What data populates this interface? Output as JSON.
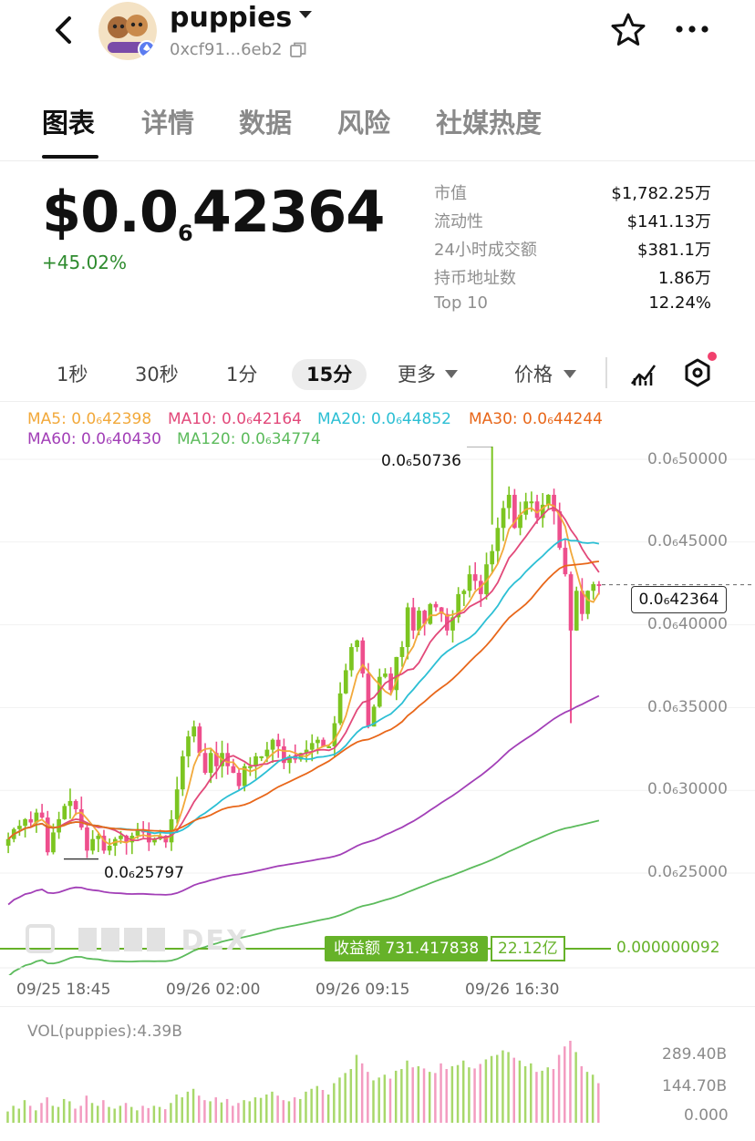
{
  "header": {
    "token_name": "puppies",
    "address": "0xcf91...6eb2"
  },
  "tabs": [
    "图表",
    "详情",
    "数据",
    "风险",
    "社媒热度"
  ],
  "price": {
    "prefix": "$0.0",
    "zeros_sub": "6",
    "digits": "42364",
    "change": "+45.02%"
  },
  "stats": [
    {
      "label": "市值",
      "value": "$1,782.25万"
    },
    {
      "label": "流动性",
      "value": "$141.13万"
    },
    {
      "label": "24小时成交额",
      "value": "$381.1万"
    },
    {
      "label": "持币地址数",
      "value": "1.86万"
    },
    {
      "label": "Top 10",
      "value": "12.24%"
    }
  ],
  "timeframes": {
    "items": [
      "1秒",
      "30秒",
      "1分",
      "15分"
    ],
    "active": "15分",
    "more": "更多",
    "price": "价格"
  },
  "ma_legend": [
    {
      "label": "MA5: 0.0₆42398",
      "color": "#f2a93b"
    },
    {
      "label": "MA10: 0.0₆42164",
      "color": "#e2497a"
    },
    {
      "label": "MA20: 0.0₆44852",
      "color": "#2cbfd4"
    },
    {
      "label": "MA30: 0.0₆44244",
      "color": "#e8671a"
    },
    {
      "label": "MA60: 0.0₆40430",
      "color": "#a23fb7"
    },
    {
      "label": "MA120: 0.0₆34774",
      "color": "#5cbb5c"
    }
  ],
  "chart_data": {
    "type": "candlestick",
    "y_ticks": [
      "0.0₆50000",
      "0.0₆45000",
      "0.0₆40000",
      "0.0₆35000",
      "0.0₆30000",
      "0.0₆25000"
    ],
    "y_tick_values": [
      5.0,
      4.5,
      4.0,
      3.5,
      3.0,
      2.5
    ],
    "ylim": [
      2.2,
      5.3
    ],
    "last_price_label": "0.0₆42364",
    "last_price": 4.2364,
    "high_label": "0.0₆50736",
    "high": 5.0736,
    "low_label": "0.0₆25797",
    "low": 2.5797,
    "x_labels": [
      "09/25 18:45",
      "09/26 02:00",
      "09/26 09:15",
      "09/26 16:30"
    ],
    "profit_label": "收益额 731.417838",
    "profit_extra": "22.12亿",
    "profit_value": "0.000000092",
    "closes": [
      2.7,
      2.76,
      2.78,
      2.82,
      2.8,
      2.86,
      2.83,
      2.62,
      2.74,
      2.82,
      2.9,
      2.93,
      2.88,
      2.77,
      2.63,
      2.7,
      2.72,
      2.63,
      2.66,
      2.7,
      2.72,
      2.68,
      2.72,
      2.76,
      2.74,
      2.68,
      2.7,
      2.72,
      2.68,
      2.82,
      3.0,
      3.2,
      3.32,
      3.38,
      3.22,
      3.1,
      3.22,
      3.14,
      3.22,
      3.14,
      3.1,
      3.02,
      3.14,
      3.14,
      3.2,
      3.2,
      3.24,
      3.3,
      3.26,
      3.16,
      3.2,
      3.18,
      3.22,
      3.24,
      3.28,
      3.3,
      3.26,
      3.26,
      3.4,
      3.58,
      3.72,
      3.86,
      3.9,
      3.7,
      3.38,
      3.5,
      3.68,
      3.7,
      3.6,
      3.8,
      3.86,
      4.1,
      3.96,
      4.08,
      4.0,
      4.12,
      4.1,
      4.06,
      3.96,
      4.04,
      4.18,
      4.2,
      4.3,
      4.26,
      4.18,
      4.36,
      4.44,
      4.58,
      4.7,
      4.78,
      4.58,
      4.66,
      4.74,
      4.74,
      4.64,
      4.72,
      4.78,
      4.68,
      4.46,
      4.3,
      3.96,
      4.2,
      4.06,
      4.2,
      4.24,
      4.2364
    ],
    "volume_ticks": [
      "289.40B",
      "144.70B",
      "0.000"
    ],
    "volume_title": "VOL(puppies):4.39B",
    "volumes": [
      20,
      30,
      25,
      40,
      30,
      22,
      35,
      45,
      30,
      28,
      42,
      38,
      25,
      30,
      48,
      35,
      30,
      40,
      28,
      25,
      30,
      35,
      28,
      22,
      30,
      26,
      30,
      28,
      24,
      35,
      50,
      45,
      55,
      60,
      48,
      40,
      38,
      45,
      36,
      42,
      30,
      35,
      40,
      38,
      45,
      44,
      50,
      55,
      48,
      40,
      38,
      45,
      42,
      55,
      60,
      65,
      58,
      50,
      70,
      80,
      88,
      95,
      120,
      105,
      90,
      75,
      80,
      85,
      78,
      92,
      95,
      110,
      98,
      100,
      96,
      90,
      88,
      105,
      95,
      100,
      102,
      110,
      98,
      96,
      104,
      112,
      118,
      120,
      128,
      125,
      115,
      110,
      100,
      105,
      90,
      92,
      98,
      95,
      120,
      135,
      145,
      125,
      100,
      90,
      85,
      70
    ]
  },
  "watermark": "DEX"
}
